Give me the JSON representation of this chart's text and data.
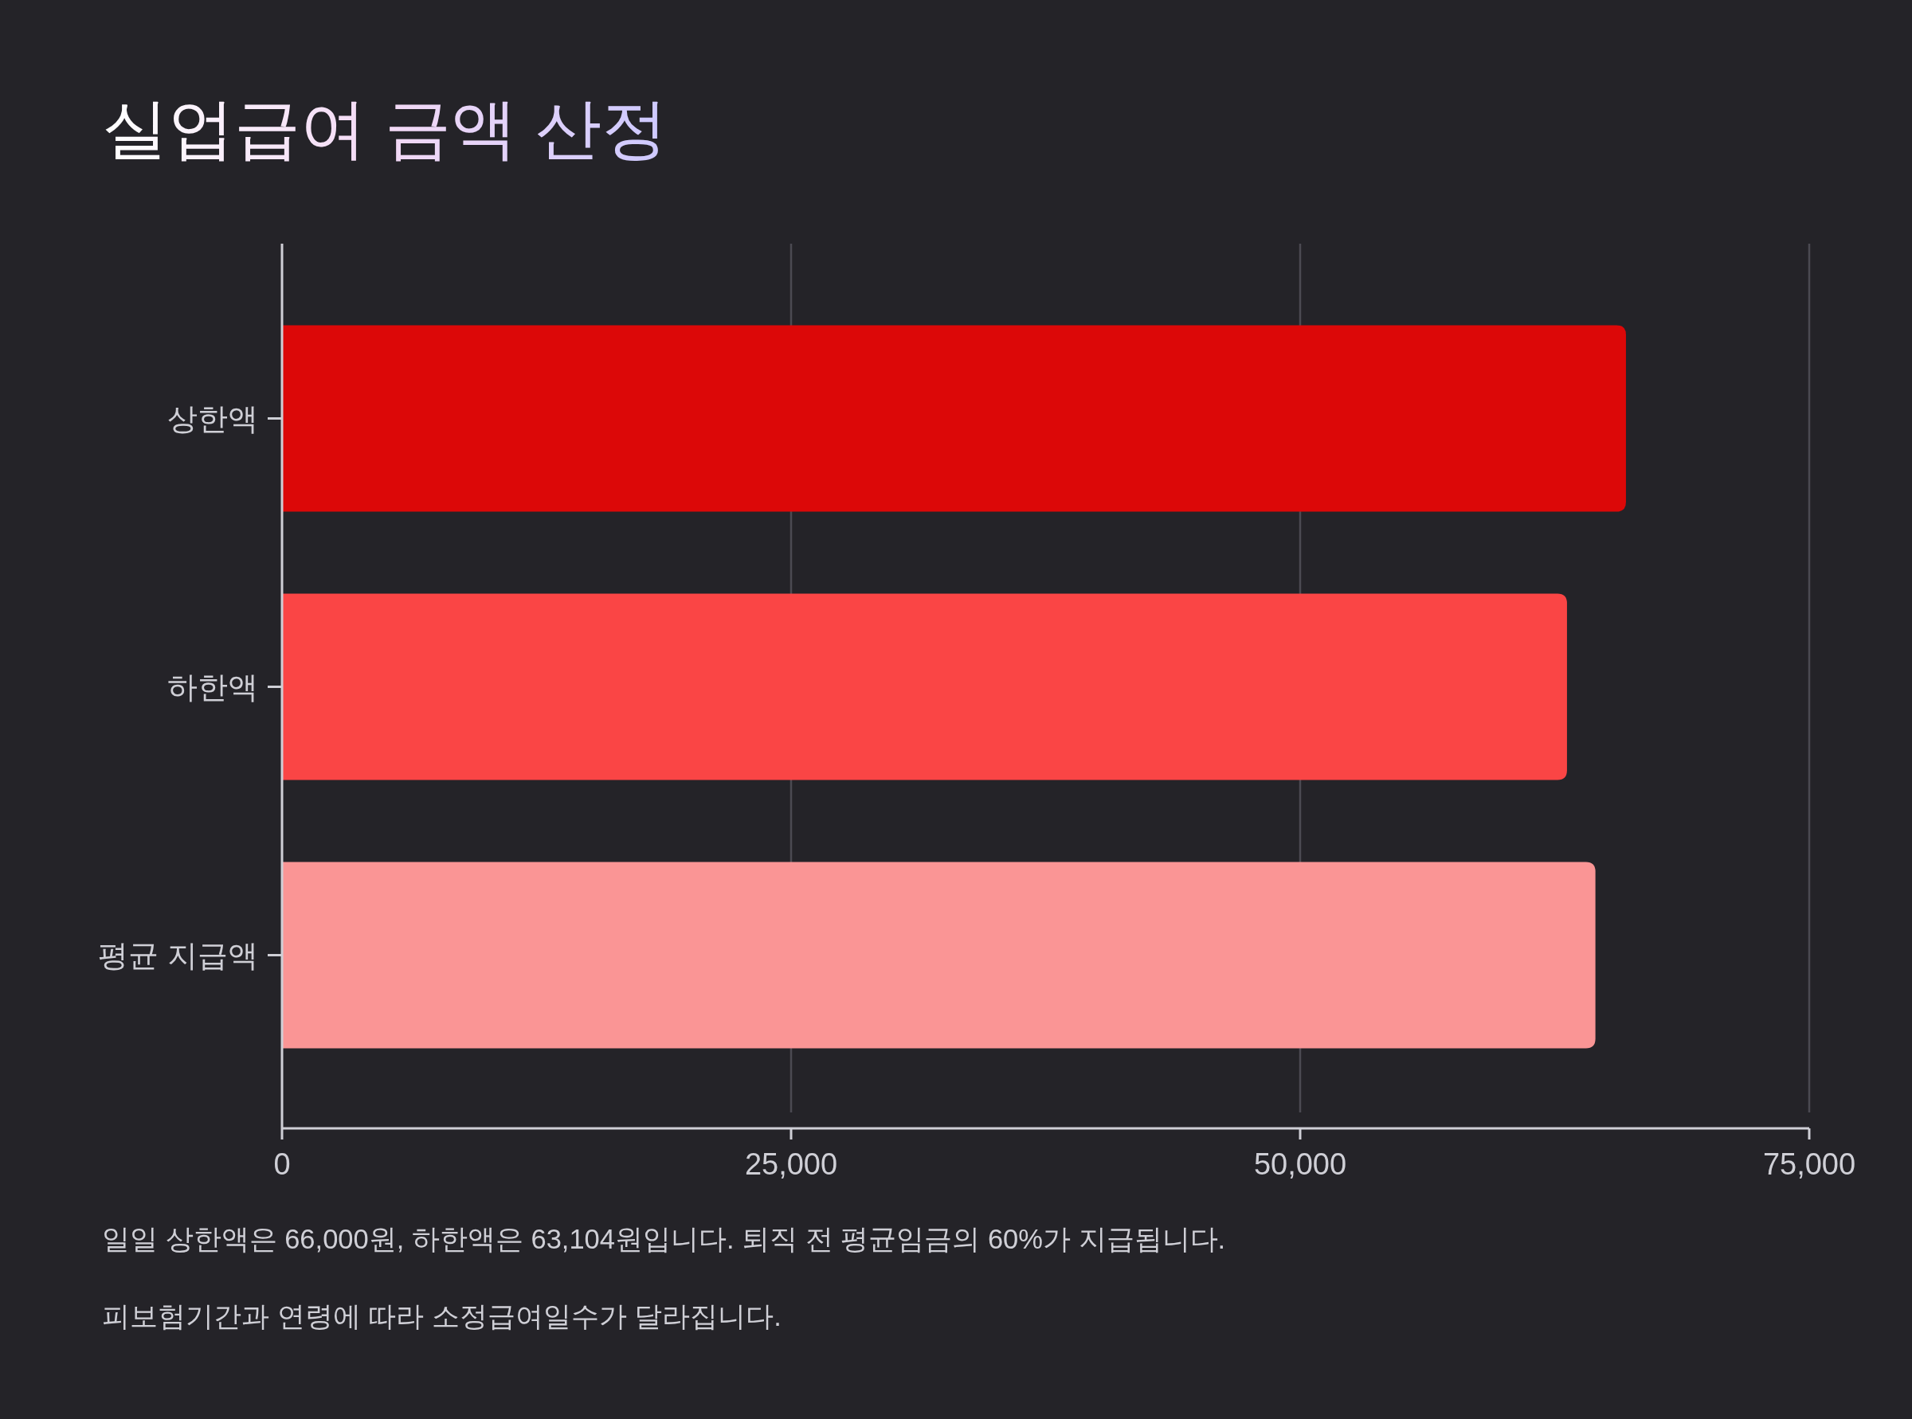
{
  "chart_data": {
    "type": "bar",
    "orientation": "horizontal",
    "title": "실업급여 금액 산정",
    "categories": [
      "상한액",
      "하한액",
      "평균 지급액"
    ],
    "values": [
      66000,
      63104,
      64500
    ],
    "colors": [
      "#dc0808",
      "#fa4545",
      "#fa9595"
    ],
    "xlim": [
      0,
      75000
    ],
    "xticks": [
      {
        "value": 0,
        "label": "0"
      },
      {
        "value": 25000,
        "label": "25,000"
      },
      {
        "value": 50000,
        "label": "50,000"
      },
      {
        "value": 75000,
        "label": "75,000"
      }
    ],
    "grid": "x",
    "annotations": [
      "일일 상한액은 66,000원, 하한액은 63,104원입니다. 퇴직 전 평균임금의 60%가 지급됩니다.",
      "피보험기간과 연령에 따라 소정급여일수가 달라집니다."
    ]
  }
}
